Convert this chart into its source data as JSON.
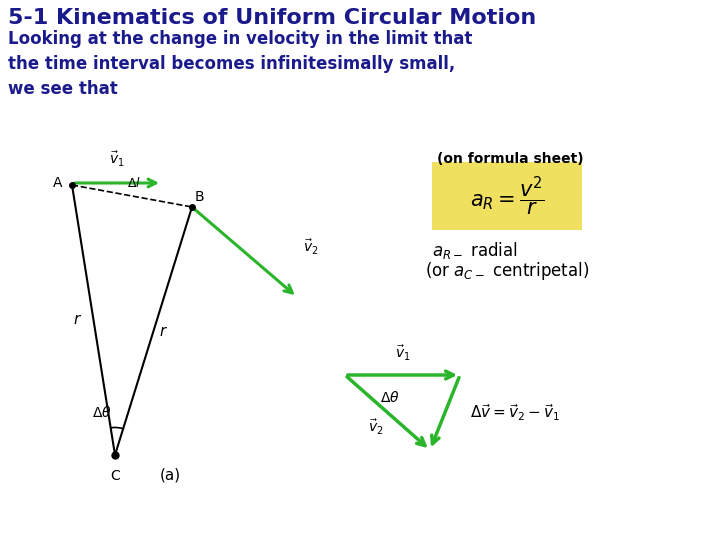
{
  "title": "5-1 Kinematics of Uniform Circular Motion",
  "subtitle": "Looking at the change in velocity in the limit that\nthe time interval becomes infinitesimally small,\nwe see that",
  "title_color": "#1a1a8c",
  "subtitle_color": "#1a1a8c",
  "background_color": "#ffffff",
  "formula_label": "(on formula sheet)",
  "formula_box_color": "#f0e060",
  "formula_text": "$a_R = \\dfrac{v^2}{r}$",
  "green_color": "#2ab52a",
  "black_color": "#000000",
  "delta_v_eq": "$\\Delta\\vec{v} = \\vec{v}_2 - \\vec{v}_1$",
  "diagram_a_label": "(a)",
  "title_fontsize": 16,
  "subtitle_fontsize": 12
}
